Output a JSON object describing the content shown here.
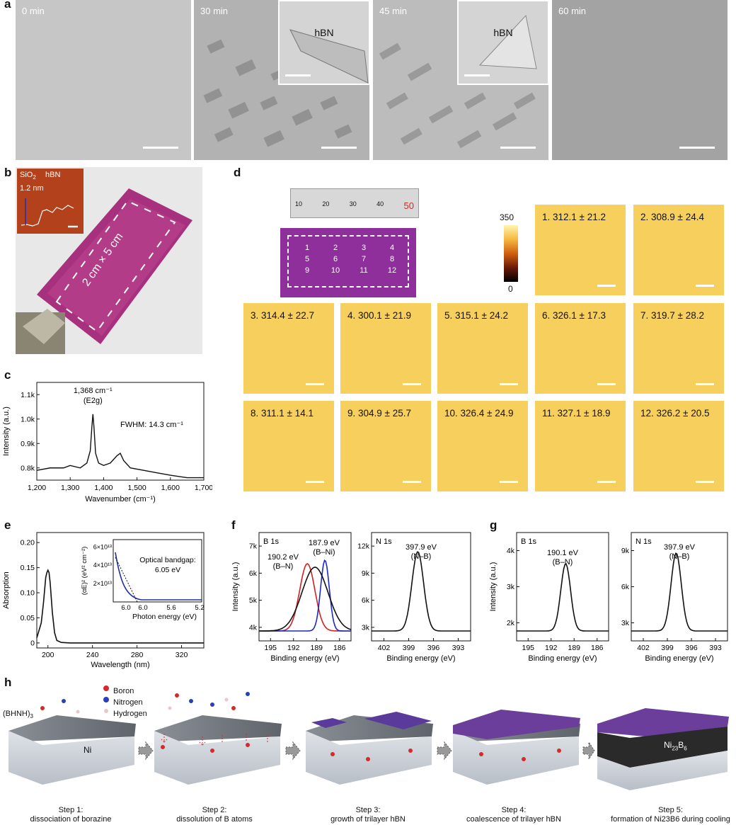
{
  "panel_letters": {
    "a": "a",
    "b": "b",
    "c": "c",
    "d": "d",
    "e": "e",
    "f": "f",
    "g": "g",
    "h": "h"
  },
  "a": {
    "times": [
      "0 min",
      "30 min",
      "45 min",
      "60 min"
    ],
    "inset_label": "hBN"
  },
  "b": {
    "inset_sio2": "SiO",
    "inset_sio2_sub": "2",
    "inset_hbn": "hBN",
    "inset_height": "1.2 nm",
    "sample_label": "2 cm × 5 cm"
  },
  "d": {
    "ruler_numbers": [
      "10",
      "20",
      "30",
      "40",
      "50"
    ],
    "grid_numbers": [
      "1",
      "2",
      "3",
      "4",
      "5",
      "6",
      "7",
      "8",
      "9",
      "10",
      "11",
      "12"
    ],
    "colorbar_max": "350",
    "colorbar_min": "0",
    "tiles": [
      "1. 312.1 ± 21.2",
      "2. 308.9 ± 24.4",
      "3. 314.4 ± 22.7",
      "4. 300.1 ± 21.9",
      "5. 315.1 ± 24.2",
      "6. 326.1 ± 17.3",
      "7. 319.7 ± 28.2",
      "8. 311.1 ± 14.1",
      "9. 304.9 ± 25.7",
      "10. 326.4 ± 24.9",
      "11. 327.1 ± 18.9",
      "12. 326.2 ± 20.5"
    ]
  },
  "chart_data": [
    {
      "panel": "c",
      "type": "line",
      "xlabel": "Wavenumber (cm⁻¹)",
      "ylabel": "Intensity (a.u.)",
      "xlim": [
        1200,
        1700
      ],
      "ylim": [
        0.75,
        1.15
      ],
      "xticks": [
        "1,200",
        "1,300",
        "1,400",
        "1,500",
        "1,600",
        "1,700"
      ],
      "yticks": [
        "0.8k",
        "0.9k",
        "1.0k",
        "1.1k"
      ],
      "annotations": [
        "1,368 cm⁻¹",
        "(E2g)",
        "FWHM: 14.3 cm⁻¹"
      ],
      "x": [
        1200,
        1240,
        1280,
        1300,
        1330,
        1350,
        1360,
        1365,
        1368,
        1371,
        1376,
        1385,
        1400,
        1420,
        1440,
        1450,
        1460,
        1480,
        1520,
        1560,
        1600,
        1650,
        1700
      ],
      "y": [
        0.79,
        0.8,
        0.8,
        0.81,
        0.8,
        0.82,
        0.87,
        0.97,
        1.02,
        0.97,
        0.86,
        0.82,
        0.81,
        0.82,
        0.85,
        0.86,
        0.83,
        0.8,
        0.79,
        0.78,
        0.77,
        0.76,
        0.76
      ]
    },
    {
      "panel": "e",
      "type": "line",
      "xlabel": "Wavelength (nm)",
      "ylabel": "Absorption",
      "xlim": [
        190,
        340
      ],
      "ylim": [
        -0.01,
        0.22
      ],
      "xticks": [
        "200",
        "240",
        "280",
        "320"
      ],
      "yticks": [
        "0",
        "0.05",
        "0.10",
        "0.15",
        "0.20"
      ],
      "x": [
        190,
        194,
        196,
        198,
        199,
        200,
        201,
        202,
        204,
        206,
        208,
        212,
        220,
        260,
        340
      ],
      "y": [
        0.01,
        0.04,
        0.08,
        0.13,
        0.14,
        0.145,
        0.14,
        0.12,
        0.06,
        0.02,
        0.005,
        0.001,
        0,
        0,
        0
      ],
      "inset": {
        "xlabel": "Photon energy (eV)",
        "ylabel": "(αE)² (eV² cm⁻²)",
        "xticks": [
          "6.0",
          "5.6",
          "5.2",
          "6.0"
        ],
        "yticks": [
          "2×10¹³",
          "4×10¹³",
          "6×10¹³"
        ],
        "annotation": "Optical bandgap: 6.05 eV"
      }
    },
    {
      "panel": "f-B1s",
      "type": "line",
      "title": "B 1s",
      "xlabel": "Binding energy (eV)",
      "ylabel": "Intensity (a.u.)",
      "xticks": [
        "195",
        "192",
        "189",
        "186"
      ],
      "yticks": [
        "4k",
        "5k",
        "6k",
        "7k"
      ],
      "peaks": [
        {
          "label": "190.2 eV",
          "sub": "(B–N)",
          "x": 190.2
        },
        {
          "label": "187.9 eV",
          "sub": "(B–Ni)",
          "x": 187.9
        }
      ]
    },
    {
      "panel": "f-N1s",
      "type": "line",
      "title": "N 1s",
      "xlabel": "Binding energy (eV)",
      "xticks": [
        "402",
        "399",
        "396",
        "393"
      ],
      "yticks": [
        "3k",
        "6k",
        "9k",
        "12k"
      ],
      "peaks": [
        {
          "label": "397.9 eV",
          "sub": "(N–B)",
          "x": 397.9
        }
      ]
    },
    {
      "panel": "g-B1s",
      "type": "line",
      "title": "B 1s",
      "xlabel": "Binding energy (eV)",
      "ylabel": "Intensity (a.u.)",
      "xticks": [
        "195",
        "192",
        "189",
        "186"
      ],
      "yticks": [
        "2k",
        "3k",
        "4k"
      ],
      "peaks": [
        {
          "label": "190.1 eV",
          "sub": "(B–N)",
          "x": 190.1
        }
      ]
    },
    {
      "panel": "g-N1s",
      "type": "line",
      "title": "N 1s",
      "xlabel": "Binding energy (eV)",
      "xticks": [
        "402",
        "399",
        "396",
        "393"
      ],
      "yticks": [
        "3k",
        "6k",
        "9k"
      ],
      "peaks": [
        {
          "label": "397.9 eV",
          "sub": "(N–B)",
          "x": 397.9
        }
      ]
    }
  ],
  "h": {
    "molecule": "(BHNH)",
    "molecule_sub": "3",
    "legend": [
      "Boron",
      "Nitrogen",
      "Hydrogen"
    ],
    "colors": {
      "boron": "#d42a2a",
      "nitrogen": "#2b3fb8",
      "hydrogen": "#e8c8c8"
    },
    "ni_label": "Ni",
    "ni23_label": "Ni",
    "ni23_sub1": "23",
    "ni23_mid": "B",
    "ni23_sub2": "6",
    "steps": [
      {
        "n": "Step 1:",
        "d": "dissociation of borazine"
      },
      {
        "n": "Step 2:",
        "d": "dissolution of B atoms"
      },
      {
        "n": "Step 3:",
        "d": "growth of trilayer hBN"
      },
      {
        "n": "Step 4:",
        "d": "coalescence of trilayer hBN"
      },
      {
        "n": "Step 5:",
        "d": "formation of Ni23B6 during cooling"
      }
    ]
  }
}
